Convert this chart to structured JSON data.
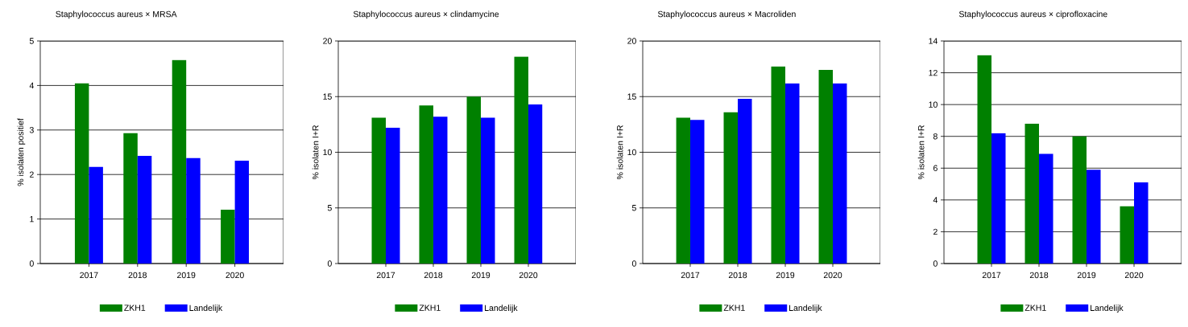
{
  "chart_data": [
    {
      "type": "bar",
      "title": "Staphylococcus aureus × MRSA",
      "ylabel": "% isolaten positief",
      "categories": [
        "2017",
        "2018",
        "2019",
        "2020"
      ],
      "series": [
        {
          "name": "ZKH1",
          "color": "#008000",
          "values": [
            4.05,
            2.93,
            4.57,
            1.21
          ]
        },
        {
          "name": "Landelijk",
          "color": "#0000ff",
          "values": [
            2.17,
            2.42,
            2.37,
            2.31
          ]
        }
      ],
      "ylim": [
        0,
        5
      ],
      "yticks": [
        0,
        1,
        2,
        3,
        4,
        5
      ],
      "grid": "y",
      "legend": "bottom"
    },
    {
      "type": "bar",
      "title": "Staphylococcus aureus × clindamycine",
      "ylabel": "% isolaten I+R",
      "categories": [
        "2017",
        "2018",
        "2019",
        "2020"
      ],
      "series": [
        {
          "name": "ZKH1",
          "color": "#008000",
          "values": [
            13.1,
            14.2,
            15.0,
            18.6
          ]
        },
        {
          "name": "Landelijk",
          "color": "#0000ff",
          "values": [
            12.2,
            13.2,
            13.1,
            14.3
          ]
        }
      ],
      "ylim": [
        0,
        20
      ],
      "yticks": [
        0,
        5,
        10,
        15,
        20
      ],
      "grid": "y",
      "legend": "bottom"
    },
    {
      "type": "bar",
      "title": "Staphylococcus aureus × Macroliden",
      "ylabel": "% isolaten I+R",
      "categories": [
        "2017",
        "2018",
        "2019",
        "2020"
      ],
      "series": [
        {
          "name": "ZKH1",
          "color": "#008000",
          "values": [
            13.1,
            13.6,
            17.7,
            17.4
          ]
        },
        {
          "name": "Landelijk",
          "color": "#0000ff",
          "values": [
            12.9,
            14.8,
            16.2,
            16.2
          ]
        }
      ],
      "ylim": [
        0,
        20
      ],
      "yticks": [
        0,
        5,
        10,
        15,
        20
      ],
      "grid": "y",
      "legend": "bottom"
    },
    {
      "type": "bar",
      "title": "Staphylococcus aureus × ciprofloxacine",
      "ylabel": "% isolaten I+R",
      "categories": [
        "2017",
        "2018",
        "2019",
        "2020"
      ],
      "series": [
        {
          "name": "ZKH1",
          "color": "#008000",
          "values": [
            13.1,
            8.8,
            8.0,
            3.6
          ]
        },
        {
          "name": "Landelijk",
          "color": "#0000ff",
          "values": [
            8.2,
            6.9,
            5.9,
            5.1
          ]
        }
      ],
      "ylim": [
        0,
        14
      ],
      "yticks": [
        0,
        2,
        4,
        6,
        8,
        10,
        12,
        14
      ],
      "grid": "y",
      "legend": "bottom"
    }
  ]
}
